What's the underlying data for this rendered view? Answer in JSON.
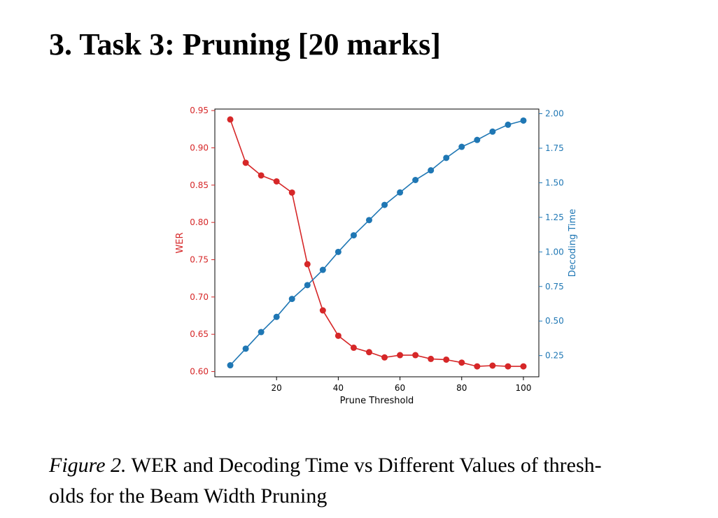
{
  "section": {
    "title": "3. Task 3: Pruning [20 marks]"
  },
  "figure": {
    "label": "Figure 2.",
    "caption_line1": "WER and Decoding Time vs Different Values of thresh-",
    "caption_line2": "olds for the Beam Width Pruning"
  },
  "chart_data": {
    "type": "line",
    "title": "",
    "xlabel": "Prune Threshold",
    "x": [
      5,
      10,
      15,
      20,
      25,
      30,
      35,
      40,
      45,
      50,
      55,
      60,
      65,
      70,
      75,
      80,
      85,
      90,
      95,
      100
    ],
    "xlim": [
      0,
      105
    ],
    "xticks": [
      20,
      40,
      60,
      80,
      100
    ],
    "grid": false,
    "legend": "none",
    "series": [
      {
        "name": "WER",
        "axis": "left",
        "color": "#d62728",
        "values": [
          0.938,
          0.88,
          0.863,
          0.855,
          0.84,
          0.744,
          0.682,
          0.648,
          0.632,
          0.626,
          0.619,
          0.622,
          0.622,
          0.617,
          0.616,
          0.612,
          0.607,
          0.608,
          0.607,
          0.607
        ]
      },
      {
        "name": "Decoding Time",
        "axis": "right",
        "color": "#1f77b4",
        "values": [
          0.18,
          0.3,
          0.42,
          0.53,
          0.66,
          0.76,
          0.87,
          1.0,
          1.12,
          1.23,
          1.34,
          1.43,
          1.52,
          1.59,
          1.68,
          1.76,
          1.81,
          1.87,
          1.92,
          1.95
        ]
      }
    ],
    "y_left": {
      "label": "WER",
      "color": "#d62728",
      "lim": [
        0.593,
        0.952
      ],
      "ticks": [
        "0.60",
        "0.65",
        "0.70",
        "0.75",
        "0.80",
        "0.85",
        "0.90",
        "0.95"
      ]
    },
    "y_right": {
      "label": "Decoding Time",
      "color": "#1f77b4",
      "lim": [
        0.0967,
        2.0332
      ],
      "ticks": [
        "0.25",
        "0.50",
        "0.75",
        "1.00",
        "1.25",
        "1.50",
        "1.75",
        "2.00"
      ]
    }
  }
}
